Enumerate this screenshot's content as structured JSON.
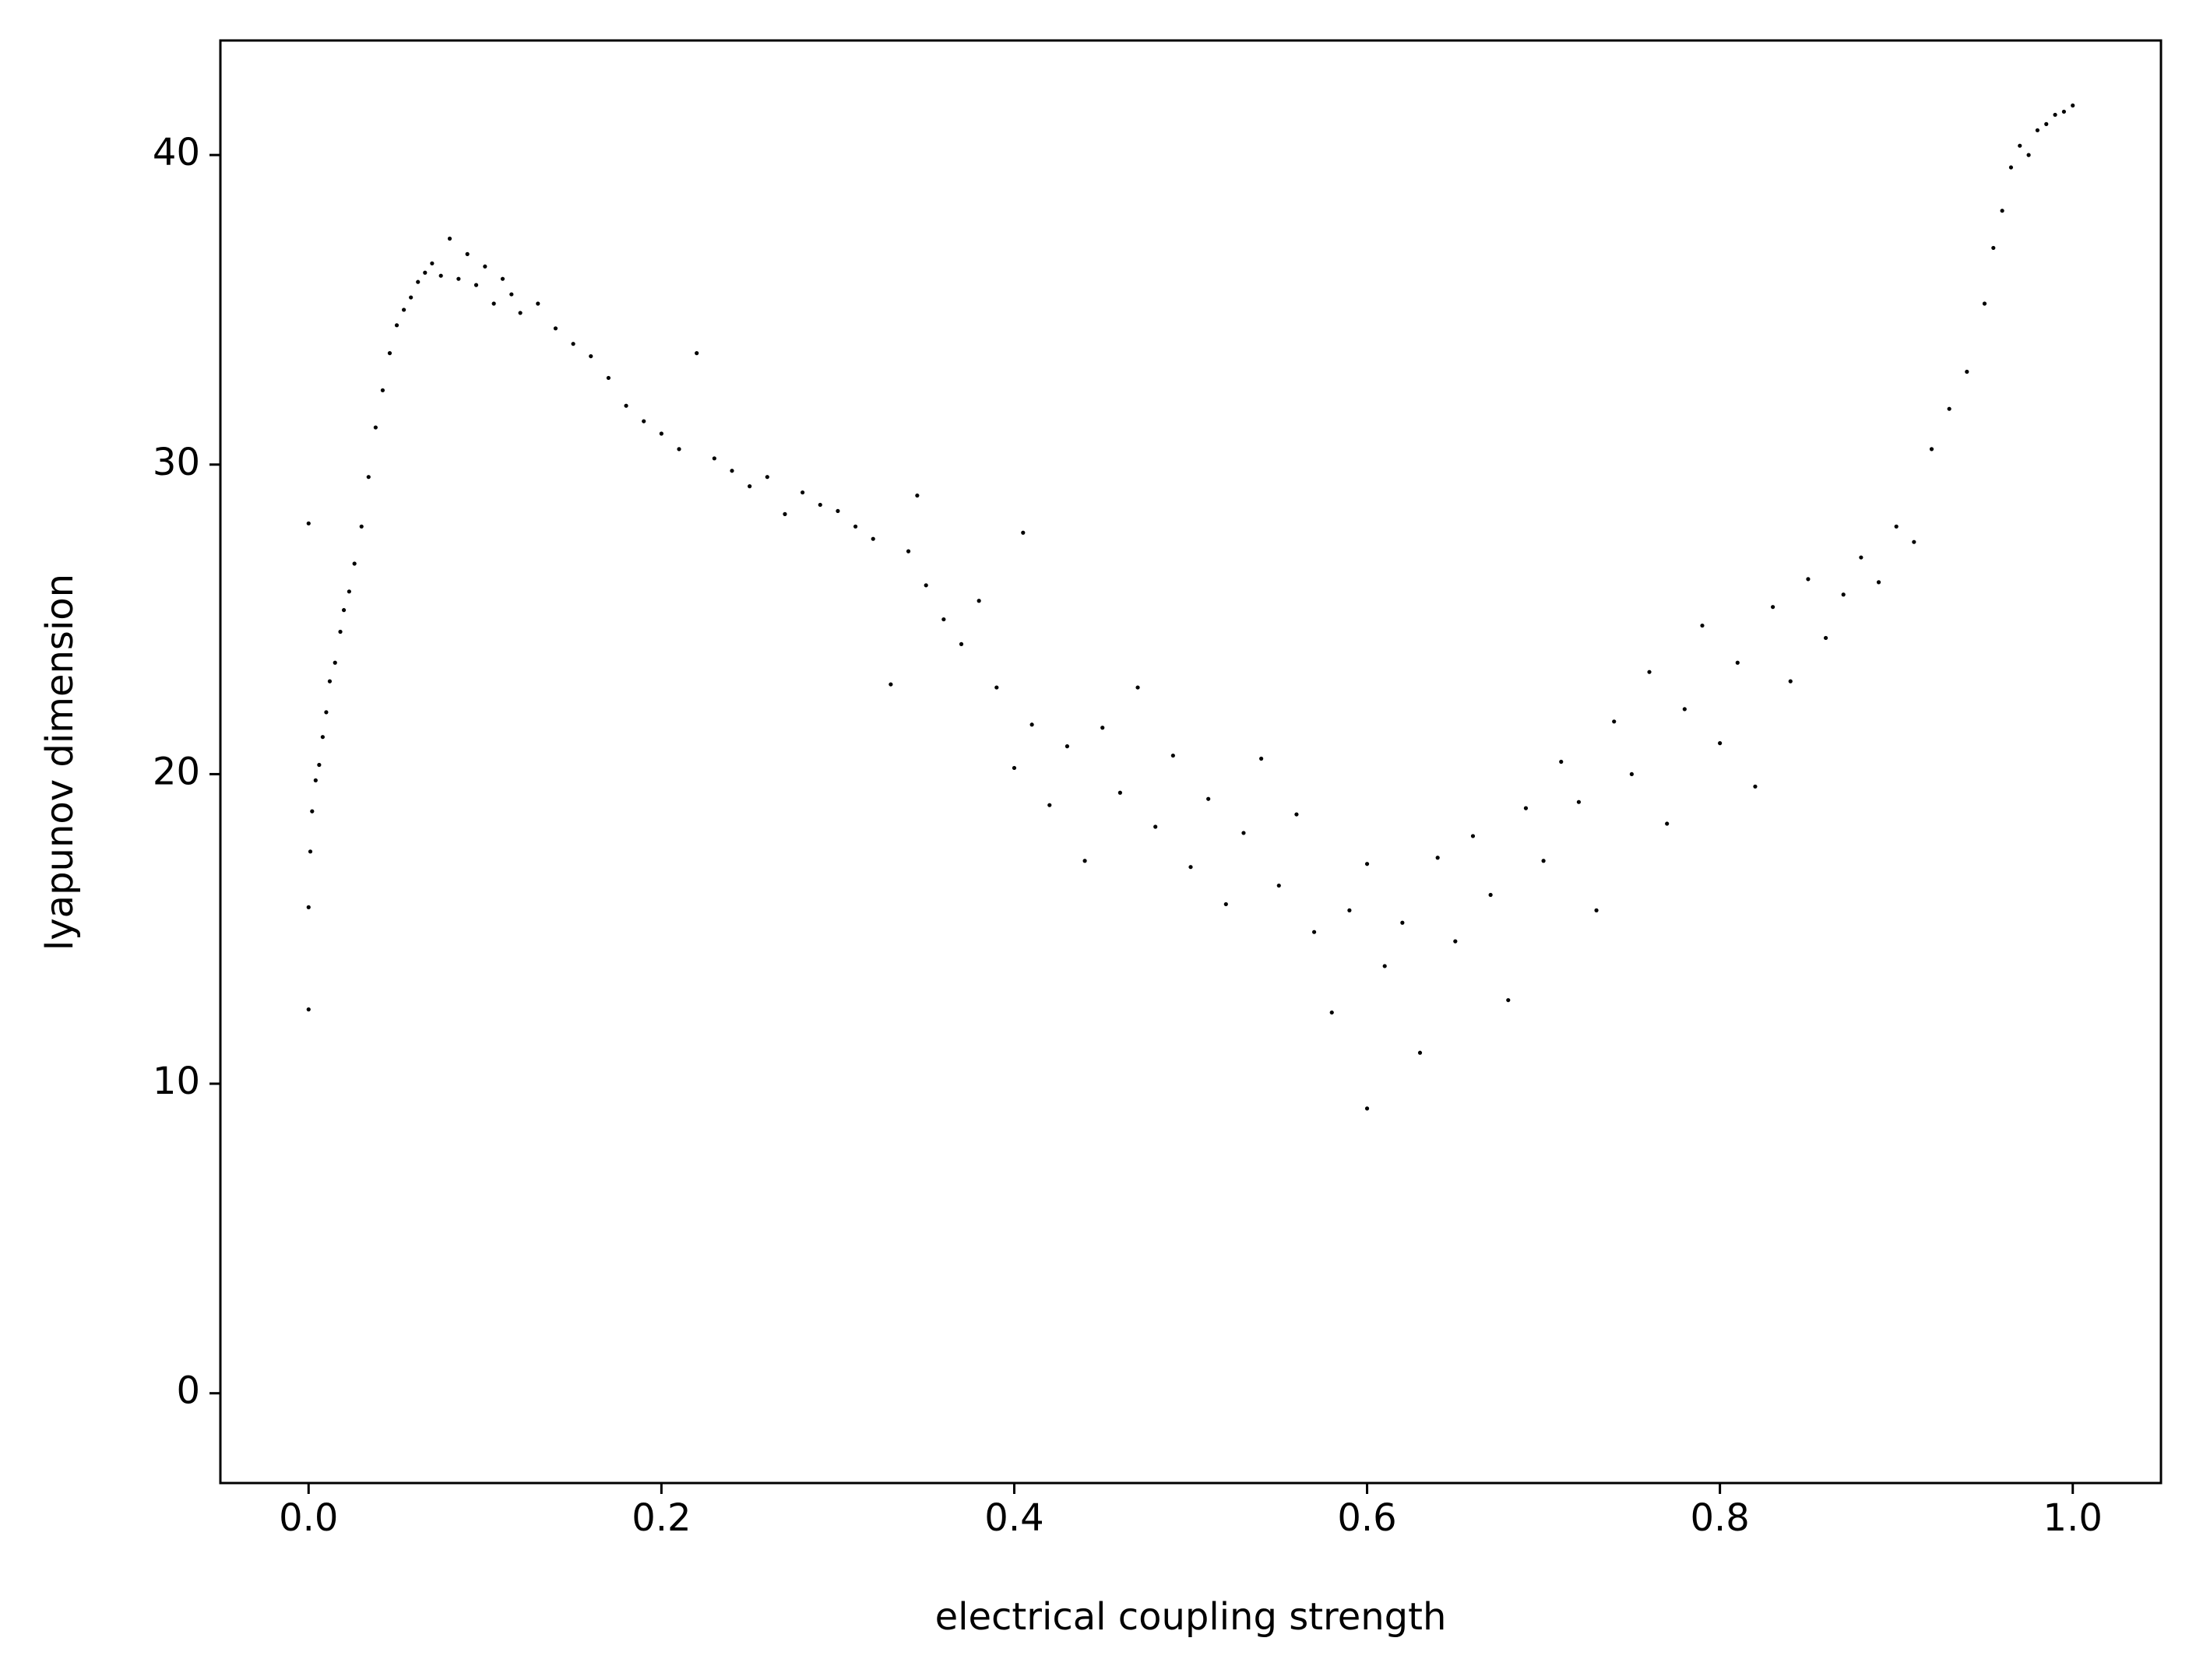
{
  "chart_data": {
    "type": "scatter",
    "xlabel": "electrical coupling strength",
    "ylabel": "lyapunov dimension",
    "xlim": [
      -0.05,
      1.05
    ],
    "ylim": [
      -2.9,
      43.7
    ],
    "xticks": [
      {
        "value": 0,
        "label": "0.0"
      },
      0.2,
      0.4,
      0.6,
      0.8,
      {
        "value": 1,
        "label": "1.0"
      }
    ],
    "yticks": [
      0,
      10,
      20,
      30,
      40
    ],
    "color": "#000000",
    "x": [
      0.0,
      0.0,
      0.0,
      0.001,
      0.002,
      0.004,
      0.006,
      0.008,
      0.01,
      0.012,
      0.015,
      0.018,
      0.02,
      0.023,
      0.026,
      0.03,
      0.034,
      0.038,
      0.042,
      0.046,
      0.05,
      0.054,
      0.058,
      0.062,
      0.066,
      0.07,
      0.075,
      0.08,
      0.085,
      0.09,
      0.095,
      0.1,
      0.105,
      0.11,
      0.115,
      0.12,
      0.13,
      0.14,
      0.15,
      0.16,
      0.17,
      0.18,
      0.19,
      0.2,
      0.21,
      0.22,
      0.23,
      0.24,
      0.25,
      0.26,
      0.27,
      0.28,
      0.29,
      0.3,
      0.31,
      0.32,
      0.33,
      0.34,
      0.345,
      0.35,
      0.36,
      0.37,
      0.38,
      0.39,
      0.4,
      0.405,
      0.41,
      0.42,
      0.43,
      0.44,
      0.45,
      0.46,
      0.47,
      0.48,
      0.49,
      0.5,
      0.51,
      0.52,
      0.53,
      0.54,
      0.55,
      0.56,
      0.57,
      0.58,
      0.59,
      0.6,
      0.6,
      0.61,
      0.62,
      0.63,
      0.64,
      0.65,
      0.66,
      0.67,
      0.68,
      0.69,
      0.7,
      0.71,
      0.72,
      0.73,
      0.74,
      0.75,
      0.76,
      0.77,
      0.78,
      0.79,
      0.8,
      0.81,
      0.82,
      0.83,
      0.84,
      0.85,
      0.86,
      0.87,
      0.88,
      0.89,
      0.9,
      0.91,
      0.92,
      0.93,
      0.94,
      0.95,
      0.955,
      0.96,
      0.965,
      0.97,
      0.975,
      0.98,
      0.985,
      0.99,
      0.995,
      1.0
    ],
    "values": [
      28.1,
      15.7,
      12.4,
      17.5,
      18.8,
      19.8,
      20.3,
      21.2,
      22.0,
      23.0,
      23.6,
      24.6,
      25.3,
      25.9,
      26.8,
      28.0,
      29.6,
      31.2,
      32.4,
      33.6,
      34.5,
      35.0,
      35.4,
      35.9,
      36.2,
      36.5,
      36.1,
      37.3,
      36.0,
      36.8,
      35.8,
      36.4,
      35.2,
      36.0,
      35.5,
      34.9,
      35.2,
      34.4,
      33.9,
      33.5,
      32.8,
      31.9,
      31.4,
      31.0,
      30.5,
      33.6,
      30.2,
      29.8,
      29.3,
      29.6,
      28.4,
      29.1,
      28.7,
      28.5,
      28.0,
      27.6,
      22.9,
      27.2,
      29.0,
      26.1,
      25.0,
      24.2,
      25.6,
      22.8,
      20.2,
      27.8,
      21.6,
      19.0,
      20.9,
      17.2,
      21.5,
      19.4,
      22.8,
      18.3,
      20.6,
      17.0,
      19.2,
      15.8,
      18.1,
      20.5,
      16.4,
      18.7,
      14.9,
      12.3,
      15.6,
      9.2,
      17.1,
      13.8,
      15.2,
      11.0,
      17.3,
      14.6,
      18.0,
      16.1,
      12.7,
      18.9,
      17.2,
      20.4,
      19.1,
      15.6,
      21.7,
      20.0,
      23.3,
      18.4,
      22.1,
      24.8,
      21.0,
      23.6,
      19.6,
      25.4,
      23.0,
      26.3,
      24.4,
      25.8,
      27.0,
      26.2,
      28.0,
      27.5,
      30.5,
      31.8,
      33.0,
      35.2,
      37.0,
      38.2,
      39.6,
      40.3,
      40.0,
      40.8,
      41.0,
      41.3,
      41.4,
      41.6
    ]
  }
}
